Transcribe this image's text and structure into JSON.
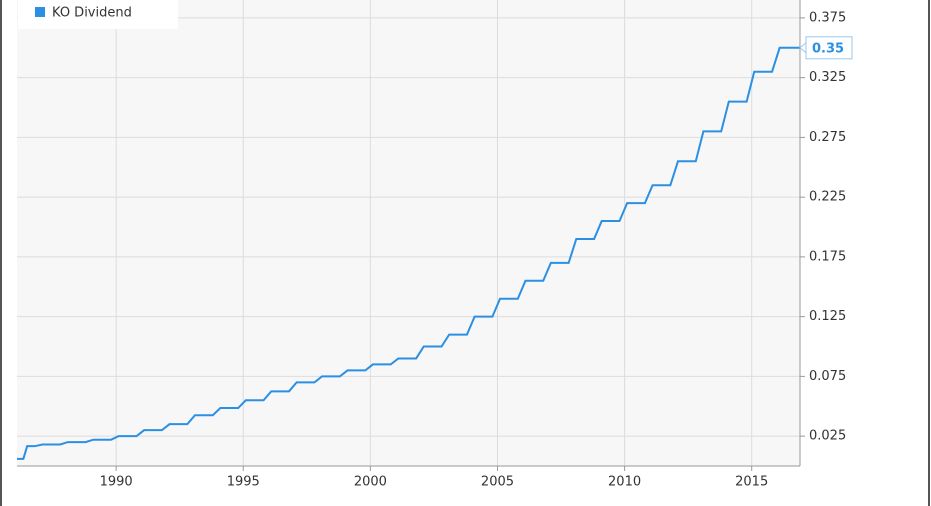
{
  "chart_data": {
    "type": "line",
    "series": [
      {
        "name": "KO Dividend",
        "color": "#2b8fe3",
        "x": [
          1986.1,
          1986.35,
          1986.5,
          1986.8,
          1987.1,
          1987.8,
          1988.1,
          1988.8,
          1989.1,
          1989.8,
          1990.1,
          1990.8,
          1991.1,
          1991.8,
          1992.1,
          1992.8,
          1993.1,
          1993.8,
          1994.1,
          1994.8,
          1995.1,
          1995.8,
          1996.1,
          1996.8,
          1997.1,
          1997.8,
          1998.1,
          1998.8,
          1999.1,
          1999.8,
          2000.1,
          2000.8,
          2001.1,
          2001.8,
          2002.1,
          2002.8,
          2003.1,
          2003.8,
          2004.1,
          2004.8,
          2005.1,
          2005.8,
          2006.1,
          2006.8,
          2007.1,
          2007.8,
          2008.1,
          2008.8,
          2009.1,
          2009.8,
          2010.1,
          2010.8,
          2011.1,
          2011.8,
          2012.1,
          2012.8,
          2013.1,
          2013.8,
          2014.1,
          2014.8,
          2015.1,
          2015.8,
          2016.1,
          2016.9
        ],
        "values": [
          0.006,
          0.006,
          0.0166,
          0.0166,
          0.018,
          0.018,
          0.02,
          0.02,
          0.022,
          0.022,
          0.025,
          0.025,
          0.03,
          0.03,
          0.035,
          0.035,
          0.0425,
          0.0425,
          0.0485,
          0.0485,
          0.055,
          0.055,
          0.0625,
          0.0625,
          0.07,
          0.07,
          0.075,
          0.075,
          0.08,
          0.08,
          0.085,
          0.085,
          0.09,
          0.09,
          0.1,
          0.1,
          0.11,
          0.11,
          0.125,
          0.125,
          0.14,
          0.14,
          0.155,
          0.155,
          0.17,
          0.17,
          0.19,
          0.19,
          0.205,
          0.205,
          0.22,
          0.22,
          0.235,
          0.235,
          0.255,
          0.255,
          0.28,
          0.28,
          0.305,
          0.305,
          0.33,
          0.33,
          0.35,
          0.35
        ]
      }
    ],
    "end_label": "0.35",
    "xlim": [
      1986.1,
      2016.9
    ],
    "xticks": [
      1990,
      1995,
      2000,
      2005,
      2010,
      2015
    ],
    "ylim": [
      0,
      0.39
    ],
    "yticks": [
      0.025,
      0.075,
      0.125,
      0.175,
      0.225,
      0.275,
      0.325,
      0.375
    ],
    "grid": true
  }
}
